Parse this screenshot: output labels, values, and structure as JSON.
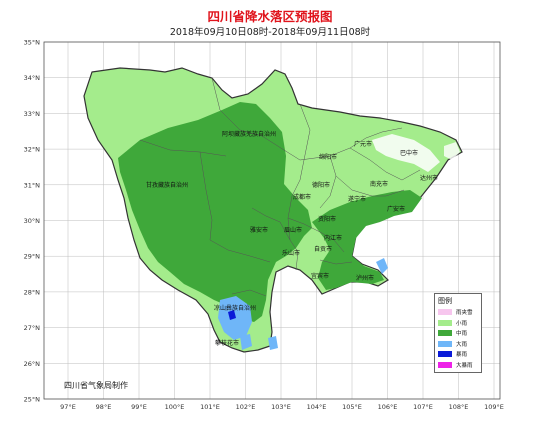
{
  "title": "四川省降水落区预报图",
  "subtitle": "2018年09月10日08时-2018年09月11日08时",
  "credit": "四川省气象局制作",
  "lat_labels": [
    "35°N",
    "34°N",
    "33°N",
    "32°N",
    "31°N",
    "30°N",
    "29°N",
    "28°N",
    "27°N",
    "26°N",
    "25°N"
  ],
  "lon_labels": [
    "97°E",
    "98°E",
    "99°E",
    "100°E",
    "101°E",
    "102°E",
    "103°E",
    "104°E",
    "105°E",
    "106°E",
    "107°E",
    "108°E",
    "109°E"
  ],
  "legend": {
    "title": "图例",
    "items": [
      {
        "label": "雨夹雪",
        "color": "#f7c6ee"
      },
      {
        "label": "小雨",
        "color": "#a4ec8c"
      },
      {
        "label": "中雨",
        "color": "#3fa83a"
      },
      {
        "label": "大雨",
        "color": "#6fb6f8"
      },
      {
        "label": "暴雨",
        "color": "#0a1ad8"
      },
      {
        "label": "大暴雨",
        "color": "#ee22e8"
      }
    ]
  },
  "places": [
    {
      "name": "阿坝藏族羌族自治州"
    },
    {
      "name": "甘孜藏族自治州"
    },
    {
      "name": "广元市"
    },
    {
      "name": "巴中市"
    },
    {
      "name": "绵阳市"
    },
    {
      "name": "达州市"
    },
    {
      "name": "南充市"
    },
    {
      "name": "德阳市"
    },
    {
      "name": "成都市"
    },
    {
      "name": "遂宁市"
    },
    {
      "name": "广安市"
    },
    {
      "name": "资阳市"
    },
    {
      "name": "雅安市"
    },
    {
      "name": "眉山市"
    },
    {
      "name": "内江市"
    },
    {
      "name": "乐山市"
    },
    {
      "name": "自贡市"
    },
    {
      "name": "宜宾市"
    },
    {
      "name": "泸州市"
    },
    {
      "name": "凉山彝族自治州"
    },
    {
      "name": "攀枝花市"
    }
  ]
}
